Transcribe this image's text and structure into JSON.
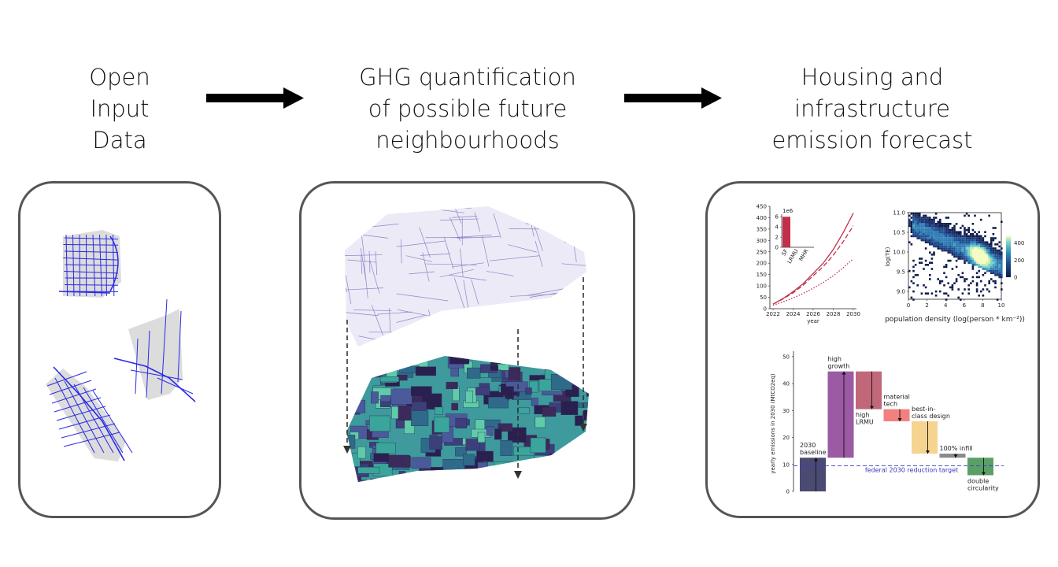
{
  "stages": [
    {
      "title_lines": [
        "Open",
        "Input",
        "Data"
      ]
    },
    {
      "title_lines": [
        "GHG quantification",
        "of possible future",
        "neighbourhoods"
      ]
    },
    {
      "title_lines": [
        "Housing and",
        "infrastructure",
        "emission forecast"
      ]
    }
  ],
  "colors": {
    "panel_border": "#555555",
    "street_blue": "#2a2ae6",
    "emission_red": "#c0304a",
    "target_line": "#3a3ab8"
  },
  "chart_data": [
    {
      "type": "line",
      "x": [
        2022,
        2023,
        2024,
        2025,
        2026,
        2027,
        2028,
        2029,
        2030
      ],
      "xlabel": "year",
      "ylabel": "",
      "xticks": [
        2022,
        2024,
        2026,
        2028,
        2030
      ],
      "yticks": [
        0,
        50,
        100,
        150,
        200,
        250,
        300,
        350,
        400,
        450
      ],
      "ylim": [
        0,
        450
      ],
      "series": [
        {
          "style": "solid",
          "values": [
            20,
            45,
            75,
            110,
            155,
            200,
            260,
            335,
            420
          ]
        },
        {
          "style": "dashed",
          "values": [
            20,
            43,
            70,
            103,
            145,
            185,
            235,
            295,
            365
          ]
        },
        {
          "style": "dotted",
          "values": [
            15,
            30,
            47,
            67,
            90,
            115,
            145,
            180,
            220
          ]
        }
      ]
    },
    {
      "type": "bar",
      "categories": [
        "SF",
        "LRMU",
        "MHR"
      ],
      "values": [
        6.0,
        0.05,
        0.05
      ],
      "scale_label": "1e6",
      "yticks": [
        0,
        2,
        4,
        6
      ],
      "ylim": [
        0,
        6.5
      ]
    },
    {
      "type": "heatmap",
      "xlabel": "population density (log(person * km⁻²))",
      "ylabel": "log(TE)",
      "xticks": [
        0,
        2,
        4,
        6,
        8,
        10
      ],
      "yticks": [
        9.0,
        9.5,
        10.0,
        10.5,
        11.0
      ],
      "xlim": [
        0,
        10
      ],
      "ylim": [
        8.8,
        11.0
      ],
      "colorbar_ticks": [
        0,
        200,
        400
      ]
    },
    {
      "type": "bar",
      "ylabel": "yearly emissions in 2030 (MtCO2eq)",
      "yticks": [
        0,
        10,
        20,
        30,
        40,
        50
      ],
      "ylim": [
        0,
        52
      ],
      "target_label": "federal 2030 reduction target",
      "target_value": 9.5,
      "steps": [
        {
          "label": "2030 baseline",
          "from": 0,
          "to": 12.5,
          "color": "#4a4a73"
        },
        {
          "label": "high growth",
          "from": 12.5,
          "to": 44.5,
          "color": "#9b5aa3"
        },
        {
          "label": "high LRMU",
          "from": 44.5,
          "to": 30.5,
          "color": "#c0687a"
        },
        {
          "label": "material tech",
          "from": 30.5,
          "to": 26,
          "color": "#f28080"
        },
        {
          "label": "best-in-class design",
          "from": 26,
          "to": 14,
          "color": "#f5d48f"
        },
        {
          "label": "100% infill",
          "from": 14,
          "to": 12.5,
          "color": "#8a8a8a"
        },
        {
          "label": "double circularity",
          "from": 12.5,
          "to": 6,
          "color": "#5aa066"
        }
      ]
    }
  ]
}
